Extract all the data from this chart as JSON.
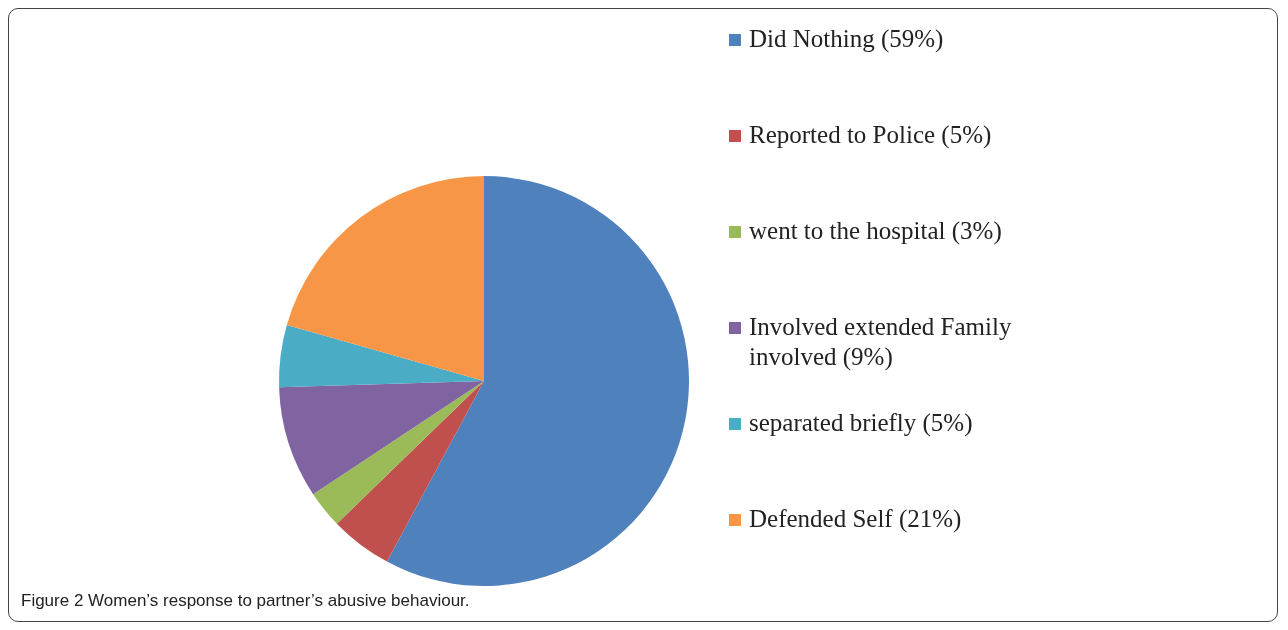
{
  "chart_data": {
    "type": "pie",
    "title": "Figure 2 Women’s response to partner’s abusive behaviour.",
    "categories": [
      "Did Nothing (59%)",
      "Reported to Police (5%)",
      "went to the hospital (3%)",
      "Involved extended Family involved (9%)",
      "separated briefly (5%)",
      "Defended Self (21%)"
    ],
    "values": [
      59,
      5,
      3,
      9,
      5,
      21
    ],
    "colors": [
      "#4f81bd",
      "#c0504d",
      "#9bbb59",
      "#8064a2",
      "#4bacc6",
      "#f79646"
    ],
    "legend": "right"
  }
}
